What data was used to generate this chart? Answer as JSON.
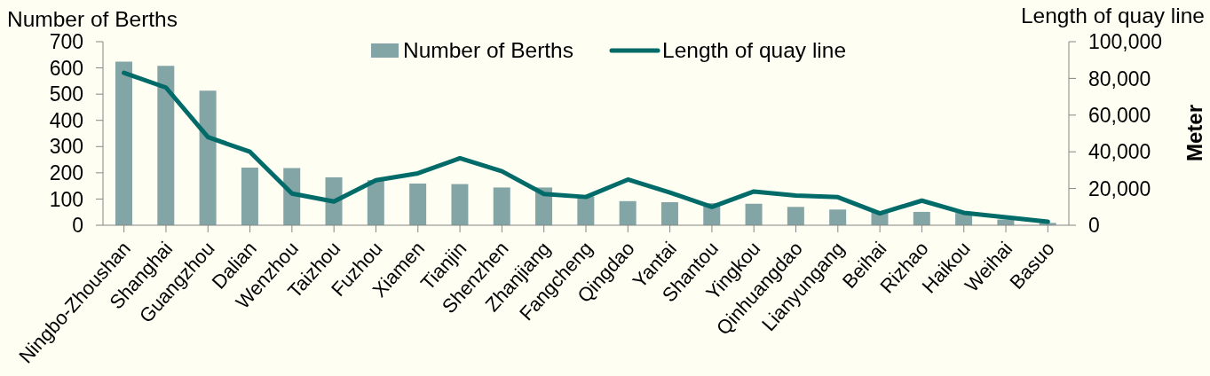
{
  "chart_data": {
    "type": "bar",
    "ylabel": "Number of Berths",
    "y2label": "Length of quay line",
    "annotations": [
      "Meter"
    ],
    "categories": [
      "Ningbo-Zhoushan",
      "Shanghai",
      "Guangzhou",
      "Dalian",
      "Wenzhou",
      "Taizhou",
      "Fuzhou",
      "Xiamen",
      "Tianjin",
      "Shenzhen",
      "Zhanjiang",
      "Fangcheng",
      "Qingdao",
      "Yantai",
      "Shantou",
      "Yingkou",
      "Qinhuangdao",
      "Lianyungang",
      "Beihai",
      "Rizhao",
      "Haikou",
      "Weihai",
      "Basuo"
    ],
    "series": [
      {
        "name": "Number of Berths",
        "color": "#84a5a5",
        "values": [
          624,
          608,
          513,
          220,
          218,
          183,
          172,
          159,
          157,
          144,
          144,
          110,
          92,
          88,
          84,
          82,
          70,
          60,
          50,
          51,
          47,
          22,
          9
        ]
      },
      {
        "name": "Length of quay line",
        "type": "line",
        "axis": "y2",
        "color": "#006b68",
        "values": [
          83000,
          75000,
          48000,
          40000,
          17300,
          12900,
          24500,
          28300,
          36500,
          29400,
          17000,
          15400,
          24900,
          17800,
          10000,
          18400,
          16200,
          15300,
          6500,
          13400,
          6800,
          4400,
          1900
        ]
      }
    ],
    "ylim": [
      0,
      700
    ],
    "yticks": [
      0,
      100,
      200,
      300,
      400,
      500,
      600,
      700
    ],
    "y2lim": [
      0,
      100000
    ],
    "y2ticks": [
      0,
      {
        "value": 20000,
        "label": "20,000"
      },
      {
        "value": 40000,
        "label": "40,000"
      },
      {
        "value": 60000,
        "label": "60,000"
      },
      {
        "value": 80000,
        "label": "80,000"
      },
      {
        "value": 100000,
        "label": "100,000"
      }
    ],
    "legend": "top"
  }
}
